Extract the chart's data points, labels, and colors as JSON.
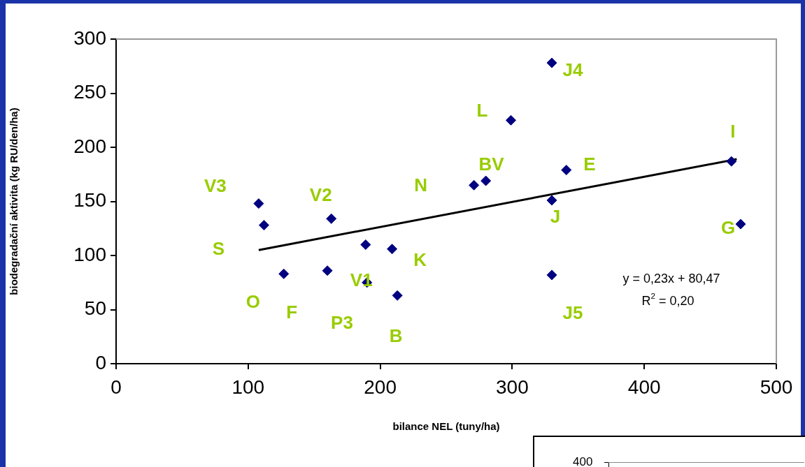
{
  "chart_data": [
    {
      "type": "scatter",
      "xlabel": "bilance NEL (tuny/ha)",
      "ylabel": "biodegradační aktivita (kg RU/den/ha)",
      "xlim": [
        0,
        500
      ],
      "ylim": [
        0,
        300
      ],
      "xticks": [
        0,
        100,
        200,
        300,
        400,
        500
      ],
      "yticks": [
        0,
        50,
        100,
        150,
        200,
        250,
        300
      ],
      "series": [
        {
          "type": "scatter",
          "marker": "diamond",
          "color": "#000080",
          "x": [
            108,
            112,
            127,
            160,
            163,
            190,
            189,
            209,
            213,
            271,
            280,
            299,
            330,
            330,
            330,
            341,
            466,
            473
          ],
          "values": [
            148,
            128,
            83,
            86,
            134,
            75,
            110,
            106,
            63,
            165,
            169,
            225,
            278,
            151,
            82,
            179,
            187,
            129
          ]
        },
        {
          "type": "line",
          "marker": "none",
          "color": "#000000",
          "x": [
            108,
            470
          ],
          "values": [
            105,
            189
          ]
        }
      ],
      "annotations": [
        {
          "text": "V3",
          "x": 108,
          "y": 148
        },
        {
          "text": "V2",
          "x": 163,
          "y": 134
        },
        {
          "text": "N",
          "x": 271,
          "y": 165
        },
        {
          "text": "S",
          "x": 112,
          "y": 128
        },
        {
          "text": "K",
          "x": 209,
          "y": 106
        },
        {
          "text": "V1",
          "x": 190,
          "y": 75
        },
        {
          "text": "O",
          "x": 127,
          "y": 83
        },
        {
          "text": "F",
          "x": 160,
          "y": 86
        },
        "P3",
        {
          "text": "B",
          "x": 213,
          "y": 63
        },
        {
          "text": "L",
          "x": 299,
          "y": 225
        },
        {
          "text": "J4",
          "x": 330,
          "y": 278
        },
        {
          "text": "BV",
          "x": 280,
          "y": 169
        },
        {
          "text": "E",
          "x": 341,
          "y": 179
        },
        {
          "text": "I",
          "x": 466,
          "y": 187
        },
        {
          "text": "J",
          "x": 330,
          "y": 151
        },
        {
          "text": "G",
          "x": 473,
          "y": 129
        },
        {
          "text": "J5",
          "x": 330,
          "y": 82
        },
        "y = 0,23x + 80,47",
        "R$^{2}$ = 0,20"
      ]
    },
    {
      "type": "other",
      "annotations": [
        "400"
      ]
    }
  ]
}
